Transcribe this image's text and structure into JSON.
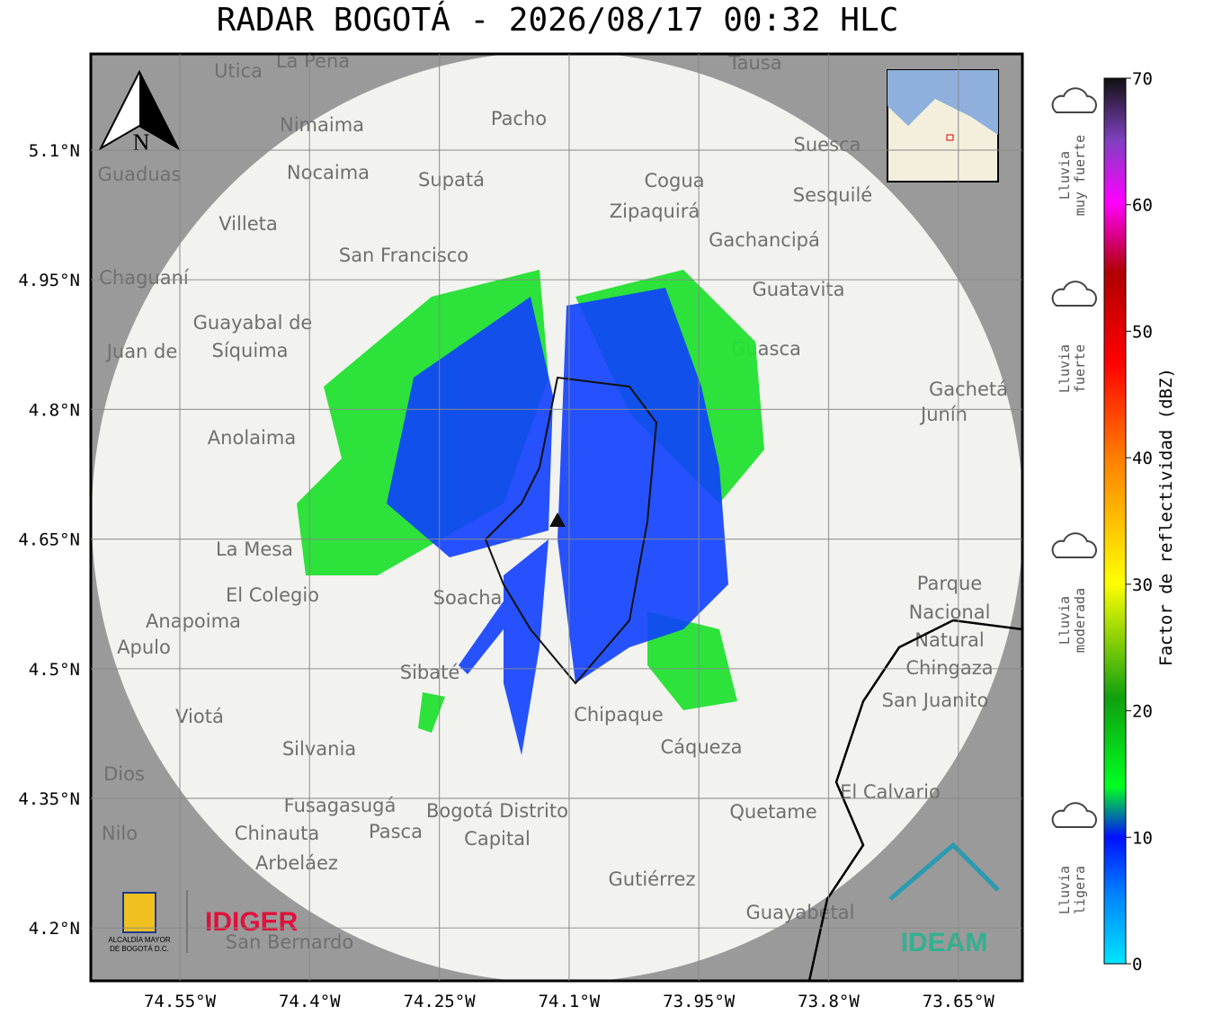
{
  "header": {
    "title": "RADAR BOGOTÁ - 2026/08/17 00:32 HLC"
  },
  "axes": {
    "lat_labels": [
      "5.1°N",
      "4.95°N",
      "4.8°N",
      "4.65°N",
      "4.5°N",
      "4.35°N",
      "4.2°N"
    ],
    "lon_labels": [
      "74.55°W",
      "74.4°W",
      "74.25°W",
      "74.1°W",
      "73.95°W",
      "73.8°W",
      "73.65°W"
    ]
  },
  "colorbar": {
    "label": "Factor de reflectividad (dBZ)",
    "range": [
      0,
      70
    ],
    "ticks": [
      0,
      10,
      20,
      30,
      40,
      50,
      60,
      70
    ]
  },
  "rain_levels": [
    [
      "Lluvia",
      "muy fuerte"
    ],
    [
      "Lluvia",
      "fuerte"
    ],
    [
      "Lluvia",
      "moderada"
    ],
    [
      "Lluvia",
      "ligera"
    ]
  ],
  "map": {
    "north": "N",
    "places": [
      "Utica",
      "La Peña",
      "Tausa",
      "Pacho",
      "Nimaima",
      "Nocaima",
      "Supatá",
      "Guaduas",
      "Suesca",
      "Cogua",
      "Zipaquirá",
      "Sesquilé",
      "Villeta",
      "Gachancipá",
      "San Francisco",
      "Chaguaní",
      "Guatavita",
      "Guayabal de",
      "Síquima",
      "Juan de",
      "Guasca",
      "Gachetá",
      "Junín",
      "Anolaima",
      "La Mesa",
      "El Colegio",
      "Soacha",
      "Parque",
      "Nacional",
      "Natural",
      "Chingaza",
      "Anapoima",
      "Apulo",
      "Sibaté",
      "San Juanito",
      "Viotá",
      "Chipaque",
      "Silvania",
      "Cáqueza",
      "Dios",
      "El Calvario",
      "Fusagasugá",
      "Bogotá Distrito",
      "Capital",
      "Quetame",
      "Nilo",
      "Chinauta",
      "Pasca",
      "Arbeláez",
      "Gutiérrez",
      "Guayabetal",
      "San Bernardo"
    ]
  },
  "logos": {
    "left_name": "IDIGER",
    "left_caption": [
      "ALCALDÍA MAYOR",
      "DE BOGOTÁ D.C."
    ],
    "right_name": "IDEAM"
  }
}
